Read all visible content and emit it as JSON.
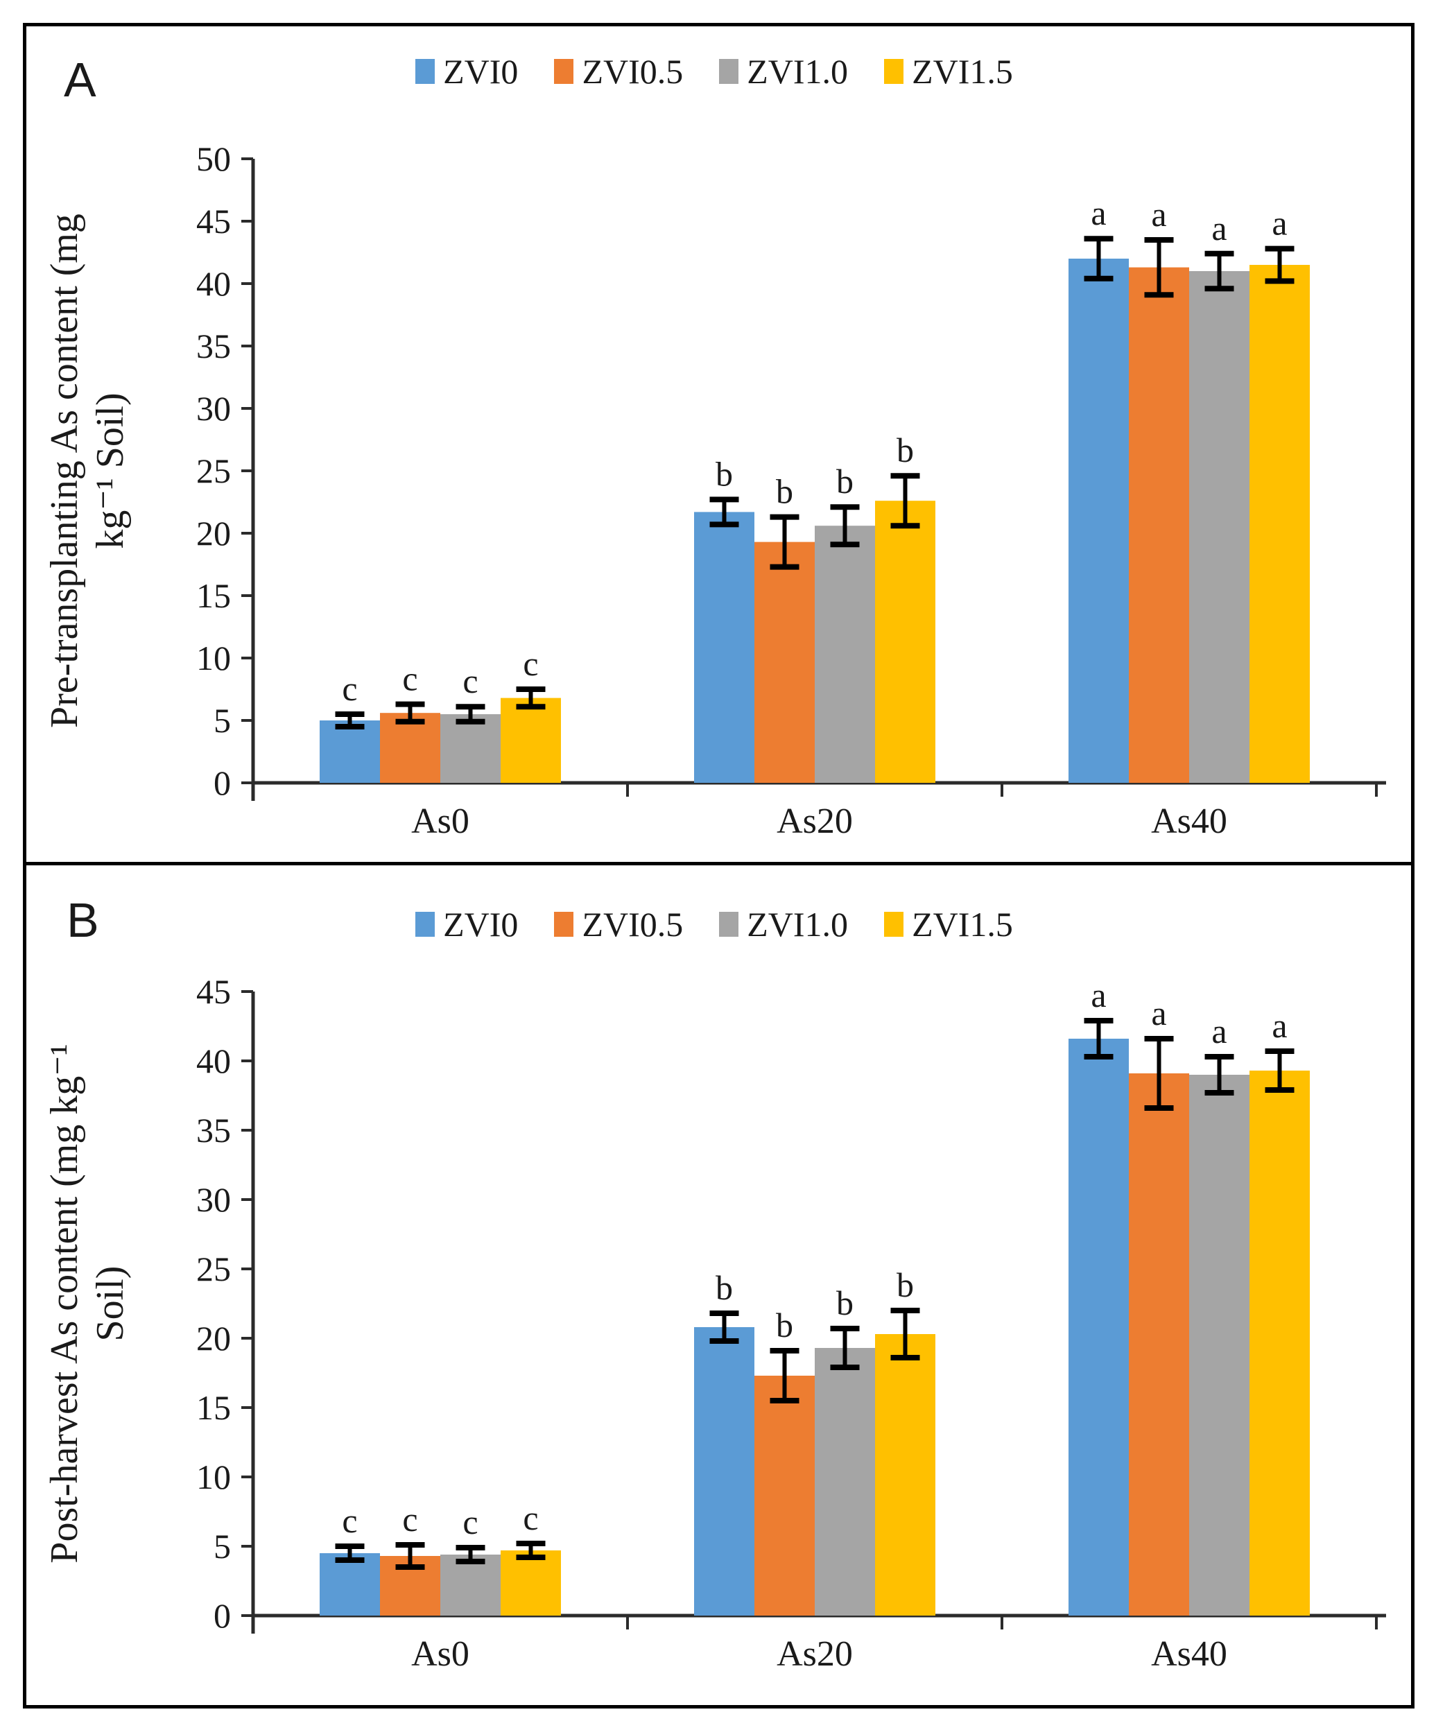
{
  "figure": {
    "panels": [
      {
        "panel_label": "A",
        "y_axis_title_line1": "Pre-transplanting As content (mg",
        "y_axis_title_line2": "kg⁻¹ Soil)"
      },
      {
        "panel_label": "B",
        "y_axis_title_line1": "Post-harvest As content (mg kg⁻¹",
        "y_axis_title_line2": "Soil)"
      }
    ]
  },
  "legend": {
    "items": [
      {
        "label": "ZVI0",
        "color": "#5B9BD5"
      },
      {
        "label": "ZVI0.5",
        "color": "#ED7D31"
      },
      {
        "label": "ZVI1.0",
        "color": "#A5A5A5"
      },
      {
        "label": "ZVI1.5",
        "color": "#FFC000"
      }
    ]
  },
  "chart_data": [
    {
      "type": "bar",
      "panel": "A",
      "title": "Pre-transplanting As content",
      "ylabel": "Pre-transplanting As content (mg kg⁻¹ Soil)",
      "xlabel": "",
      "categories": [
        "As0",
        "As20",
        "As40"
      ],
      "ylim": [
        0,
        50
      ],
      "ytick_step": 5,
      "grid": false,
      "legend_position": "top",
      "series": [
        {
          "name": "ZVI0",
          "color": "#5B9BD5",
          "values": [
            5.0,
            21.7,
            42.0
          ],
          "errors": [
            0.5,
            1.0,
            1.6
          ]
        },
        {
          "name": "ZVI0.5",
          "color": "#ED7D31",
          "values": [
            5.6,
            19.3,
            41.3
          ],
          "errors": [
            0.7,
            2.0,
            2.2
          ]
        },
        {
          "name": "ZVI1.0",
          "color": "#A5A5A5",
          "values": [
            5.5,
            20.6,
            41.0
          ],
          "errors": [
            0.6,
            1.5,
            1.4
          ]
        },
        {
          "name": "ZVI1.5",
          "color": "#FFC000",
          "values": [
            6.8,
            22.6,
            41.5
          ],
          "errors": [
            0.7,
            2.0,
            1.3
          ]
        }
      ],
      "sig_letters_by_category": [
        "c",
        "b",
        "a"
      ]
    },
    {
      "type": "bar",
      "panel": "B",
      "title": "Post-harvest As content",
      "ylabel": "Post-harvest As content (mg kg⁻¹ Soil)",
      "xlabel": "",
      "categories": [
        "As0",
        "As20",
        "As40"
      ],
      "ylim": [
        0,
        45
      ],
      "ytick_step": 5,
      "grid": false,
      "legend_position": "top",
      "series": [
        {
          "name": "ZVI0",
          "color": "#5B9BD5",
          "values": [
            4.5,
            20.8,
            41.6
          ],
          "errors": [
            0.5,
            1.0,
            1.3
          ]
        },
        {
          "name": "ZVI0.5",
          "color": "#ED7D31",
          "values": [
            4.3,
            17.3,
            39.1
          ],
          "errors": [
            0.8,
            1.8,
            2.5
          ]
        },
        {
          "name": "ZVI1.0",
          "color": "#A5A5A5",
          "values": [
            4.4,
            19.3,
            39.0
          ],
          "errors": [
            0.5,
            1.4,
            1.3
          ]
        },
        {
          "name": "ZVI1.5",
          "color": "#FFC000",
          "values": [
            4.7,
            20.3,
            39.3
          ],
          "errors": [
            0.5,
            1.7,
            1.4
          ]
        }
      ],
      "sig_letters_by_category": [
        "c",
        "b",
        "a"
      ]
    }
  ]
}
